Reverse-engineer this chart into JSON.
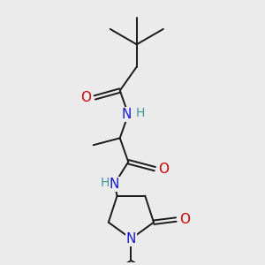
{
  "background_color": "#ebebeb",
  "bond_color": "#1a1a1a",
  "bond_width": 1.4,
  "atom_colors": {
    "O": "#cc0000",
    "N": "#1a1acc",
    "H": "#3a9999"
  },
  "font_size": 11,
  "font_size_h": 10
}
